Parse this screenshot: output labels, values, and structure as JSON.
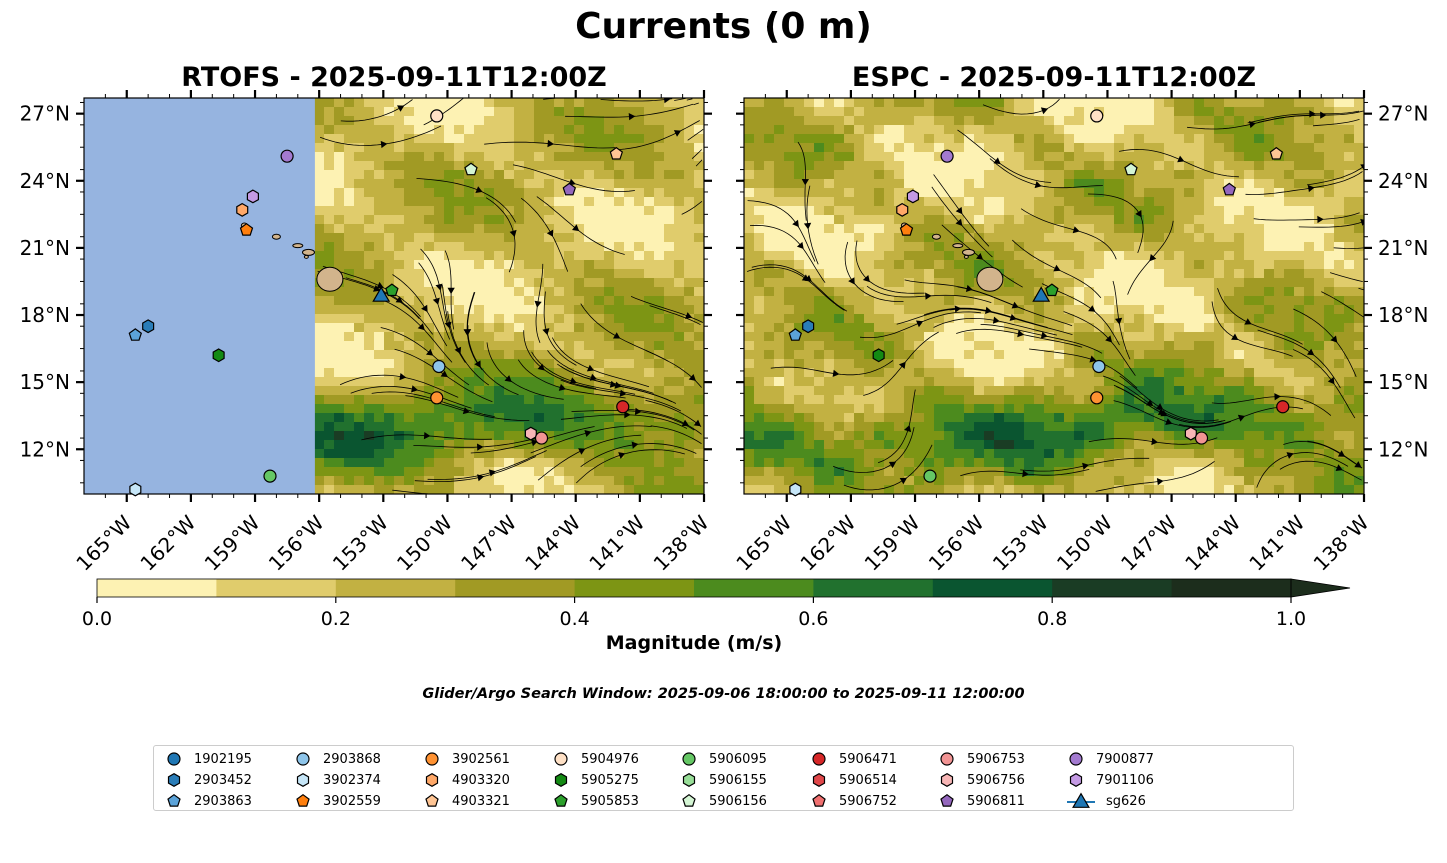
{
  "title": "Currents (0 m)",
  "panels": [
    {
      "title": "RTOFS - 2025-09-11T12:00Z"
    },
    {
      "title": "ESPC - 2025-09-11T12:00Z"
    }
  ],
  "map": {
    "lon_range": [
      -167,
      -138
    ],
    "lat_range": [
      10,
      27.7
    ],
    "lat_ticks": [
      "27°N",
      "24°N",
      "21°N",
      "18°N",
      "15°N",
      "12°N"
    ],
    "lat_values": [
      27,
      24,
      21,
      18,
      15,
      12
    ],
    "lon_ticks": [
      "165°W",
      "162°W",
      "159°W",
      "156°W",
      "153°W",
      "150°W",
      "147°W",
      "144°W",
      "141°W",
      "138°W"
    ],
    "lon_values": [
      -165,
      -162,
      -159,
      -156,
      -153,
      -150,
      -147,
      -144,
      -141,
      -138
    ],
    "rtofs_missing_region": "west of 156°W",
    "colors": {
      "missing": "#96b4e0",
      "land": "#d2b48c"
    }
  },
  "colorbar": {
    "label": "Magnitude (m/s)",
    "ticks": [
      "0.0",
      "0.2",
      "0.4",
      "0.6",
      "0.8",
      "1.0"
    ],
    "levels": [
      0,
      0.1,
      0.2,
      0.3,
      0.4,
      0.5,
      0.6,
      0.7,
      0.8,
      0.9,
      1.0
    ],
    "colors": [
      "#fdf2b3",
      "#e0cc6c",
      "#c2b142",
      "#a19a24",
      "#7d9514",
      "#4c8b1e",
      "#21712e",
      "#0a5530",
      "#1a3c24",
      "#1c2d1c"
    ],
    "extend": "max"
  },
  "search_window": "Glider/Argo Search Window: 2025-09-06 18:00:00 to 2025-09-11 12:00:00",
  "legend": [
    {
      "label": "1902195",
      "marker": "circle",
      "color": "#1f77b4"
    },
    {
      "label": "2903452",
      "marker": "hexagon",
      "color": "#2a7db8"
    },
    {
      "label": "2903863",
      "marker": "pentagon",
      "color": "#5ba3d9"
    },
    {
      "label": "2903868",
      "marker": "circle",
      "color": "#8ec5ea"
    },
    {
      "label": "3902374",
      "marker": "hexagon",
      "color": "#c6e6f8"
    },
    {
      "label": "3902559",
      "marker": "pentagon",
      "color": "#ff7f0e"
    },
    {
      "label": "3902561",
      "marker": "circle",
      "color": "#ff9232"
    },
    {
      "label": "4903320",
      "marker": "hexagon",
      "color": "#ffa868"
    },
    {
      "label": "4903321",
      "marker": "pentagon",
      "color": "#ffc594"
    },
    {
      "label": "5904976",
      "marker": "circle",
      "color": "#ffe1c6"
    },
    {
      "label": "5905275",
      "marker": "hexagon",
      "color": "#138a13"
    },
    {
      "label": "5905853",
      "marker": "pentagon",
      "color": "#2ca02c"
    },
    {
      "label": "5906095",
      "marker": "circle",
      "color": "#65c765"
    },
    {
      "label": "5906155",
      "marker": "hexagon",
      "color": "#98de98"
    },
    {
      "label": "5906156",
      "marker": "pentagon",
      "color": "#d4f5d4"
    },
    {
      "label": "5906471",
      "marker": "circle",
      "color": "#d62728"
    },
    {
      "label": "5906514",
      "marker": "hexagon",
      "color": "#e0474a"
    },
    {
      "label": "5906752",
      "marker": "pentagon",
      "color": "#f07070"
    },
    {
      "label": "5906753",
      "marker": "circle",
      "color": "#f29494"
    },
    {
      "label": "5906756",
      "marker": "hexagon",
      "color": "#f8b6b6"
    },
    {
      "label": "5906811",
      "marker": "pentagon",
      "color": "#9467bd"
    },
    {
      "label": "7900877",
      "marker": "circle",
      "color": "#a37ad0"
    },
    {
      "label": "7901106",
      "marker": "hexagon",
      "color": "#c49ae4"
    },
    {
      "label": "sg626",
      "marker": "triangle-line",
      "color": "#1f77b4"
    }
  ],
  "floats": [
    {
      "id": "5904976",
      "lon": -150.5,
      "lat": 26.9,
      "marker": "circle",
      "color": "#ffe1c6"
    },
    {
      "id": "7900877",
      "lon": -157.5,
      "lat": 25.1,
      "marker": "circle",
      "color": "#a37ad0"
    },
    {
      "id": "5906156",
      "lon": -148.9,
      "lat": 24.5,
      "marker": "pentagon",
      "color": "#d4f5d4"
    },
    {
      "id": "4903321",
      "lon": -142.1,
      "lat": 25.2,
      "marker": "pentagon",
      "color": "#ffc594"
    },
    {
      "id": "5906811",
      "lon": -144.3,
      "lat": 23.6,
      "marker": "pentagon",
      "color": "#9467bd"
    },
    {
      "id": "7901106",
      "lon": -159.1,
      "lat": 23.3,
      "marker": "hexagon",
      "color": "#c49ae4"
    },
    {
      "id": "4903320",
      "lon": -159.6,
      "lat": 22.7,
      "marker": "hexagon",
      "color": "#ffa868"
    },
    {
      "id": "3902559",
      "lon": -159.4,
      "lat": 21.8,
      "marker": "pentagon",
      "color": "#ff7f0e"
    },
    {
      "id": "5905853",
      "lon": -152.6,
      "lat": 19.1,
      "marker": "pentagon",
      "color": "#2ca02c"
    },
    {
      "id": "2903452",
      "lon": -164.0,
      "lat": 17.5,
      "marker": "hexagon",
      "color": "#2a7db8"
    },
    {
      "id": "2903863",
      "lon": -164.6,
      "lat": 17.1,
      "marker": "pentagon",
      "color": "#5ba3d9"
    },
    {
      "id": "5905275",
      "lon": -160.7,
      "lat": 16.2,
      "marker": "hexagon",
      "color": "#138a13"
    },
    {
      "id": "2903868",
      "lon": -150.4,
      "lat": 15.7,
      "marker": "circle",
      "color": "#8ec5ea"
    },
    {
      "id": "3902561",
      "lon": -150.5,
      "lat": 14.3,
      "marker": "circle",
      "color": "#ff9232"
    },
    {
      "id": "5906471",
      "lon": -141.8,
      "lat": 13.9,
      "marker": "circle",
      "color": "#d62728"
    },
    {
      "id": "5906756",
      "lon": -146.1,
      "lat": 12.7,
      "marker": "hexagon",
      "color": "#f8b6b6"
    },
    {
      "id": "5906753",
      "lon": -145.6,
      "lat": 12.5,
      "marker": "circle",
      "color": "#f29494"
    },
    {
      "id": "5906095",
      "lon": -158.3,
      "lat": 10.8,
      "marker": "circle",
      "color": "#65c765"
    },
    {
      "id": "3902374",
      "lon": -164.6,
      "lat": 10.2,
      "marker": "hexagon",
      "color": "#c6e6f8"
    }
  ],
  "glider": {
    "id": "sg626",
    "lon": -153.1,
    "lat": 18.9,
    "color": "#1f77b4"
  }
}
